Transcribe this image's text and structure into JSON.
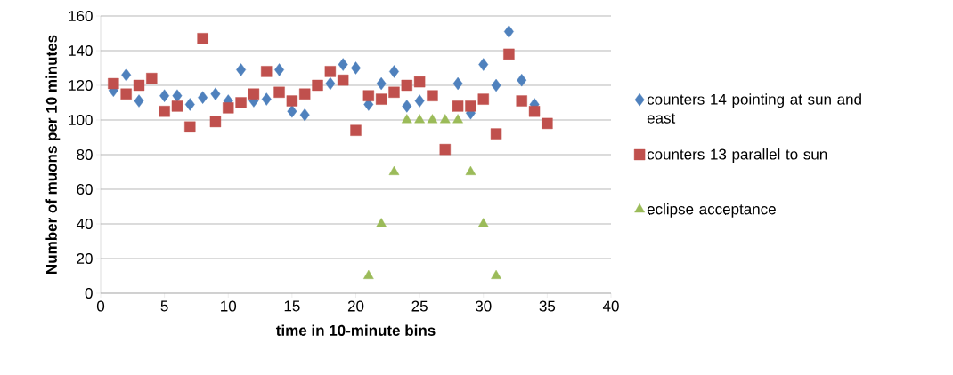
{
  "chart_data": {
    "type": "scatter",
    "xlabel": "time in 10-minute bins",
    "ylabel": "Number of muons per 10 minutes",
    "x": [
      1,
      2,
      3,
      4,
      5,
      6,
      7,
      8,
      9,
      10,
      11,
      12,
      13,
      14,
      15,
      16,
      17,
      18,
      19,
      20,
      21,
      22,
      23,
      24,
      25,
      26,
      27,
      28,
      29,
      30,
      31,
      32,
      33,
      34,
      35
    ],
    "series": [
      {
        "name": "counters 14 pointing at sun and east",
        "color": "#4f81bd",
        "marker": "diamond",
        "values": [
          117,
          126,
          111,
          null,
          114,
          114,
          109,
          113,
          115,
          111,
          129,
          111,
          112,
          129,
          105,
          103,
          null,
          121,
          132,
          130,
          109,
          121,
          128,
          108,
          111,
          null,
          null,
          121,
          104,
          132,
          120,
          151,
          123,
          109,
          null
        ]
      },
      {
        "name": "counters 13 parallel to sun",
        "color": "#c0504d",
        "marker": "square",
        "values": [
          121,
          115,
          120,
          124,
          105,
          108,
          96,
          147,
          99,
          107,
          110,
          115,
          128,
          116,
          111,
          115,
          120,
          128,
          123,
          94,
          114,
          112,
          116,
          120,
          122,
          114,
          83,
          108,
          108,
          112,
          92,
          138,
          111,
          105,
          98
        ]
      },
      {
        "name": "eclipse acceptance",
        "color": "#9bbb59",
        "marker": "triangle",
        "x": [
          21,
          22,
          23,
          24,
          25,
          26,
          27,
          28,
          29,
          30,
          31
        ],
        "values": [
          10,
          40,
          70,
          100,
          100,
          100,
          100,
          100,
          70,
          40,
          10
        ]
      }
    ],
    "xlim": [
      0,
      40
    ],
    "xticks": [
      0,
      5,
      10,
      15,
      20,
      25,
      30,
      35,
      40
    ],
    "ylim": [
      0,
      160
    ],
    "yticks": [
      0,
      20,
      40,
      60,
      80,
      100,
      120,
      140,
      160
    ],
    "grid": "y",
    "legend": "right"
  }
}
